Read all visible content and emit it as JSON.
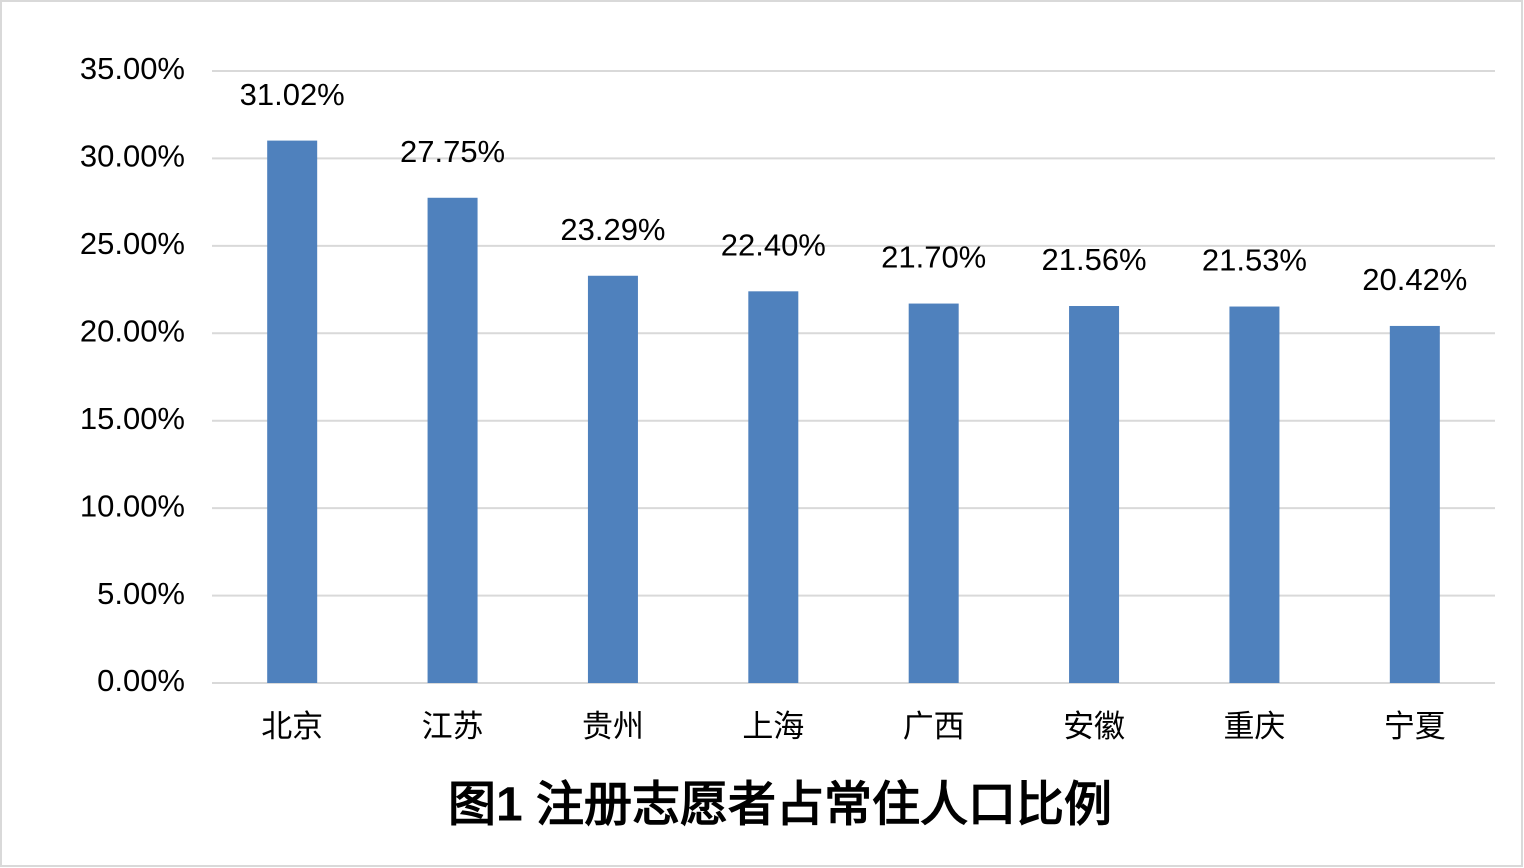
{
  "chart_data": {
    "type": "bar",
    "title": "图1  注册志愿者占常住人口比例",
    "categories": [
      "北京",
      "江苏",
      "贵州",
      "上海",
      "广西",
      "安徽",
      "重庆",
      "宁夏"
    ],
    "values": [
      31.02,
      27.75,
      23.29,
      22.4,
      21.7,
      21.56,
      21.53,
      20.42
    ],
    "value_labels": [
      "31.02%",
      "27.75%",
      "23.29%",
      "22.40%",
      "21.70%",
      "21.56%",
      "21.53%",
      "20.42%"
    ],
    "color": "#4f81bd",
    "ylim": [
      0,
      35
    ],
    "yticks": [
      {
        "value": 0,
        "label": "0.00%"
      },
      {
        "value": 5,
        "label": "5.00%"
      },
      {
        "value": 10,
        "label": "10.00%"
      },
      {
        "value": 15,
        "label": "15.00%"
      },
      {
        "value": 20,
        "label": "20.00%"
      },
      {
        "value": 25,
        "label": "25.00%"
      },
      {
        "value": 30,
        "label": "30.00%"
      },
      {
        "value": 35,
        "label": "35.00%"
      }
    ],
    "grid": true
  }
}
